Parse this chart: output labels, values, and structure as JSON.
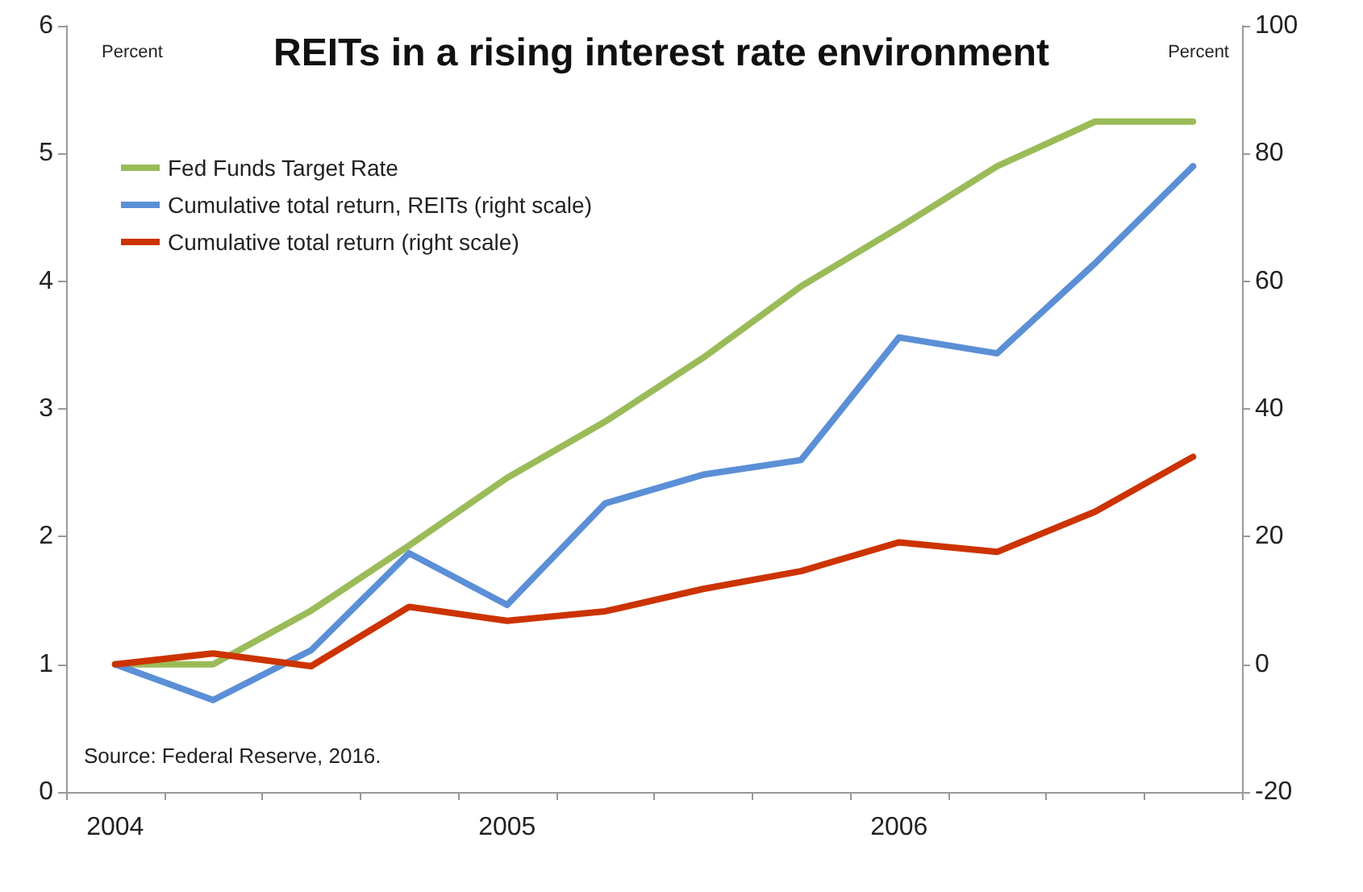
{
  "chart_data": {
    "type": "line",
    "title": "REITs in a rising interest rate environment",
    "ylabel": "Percent",
    "y2label": "Percent",
    "categories": [
      "2004",
      null,
      null,
      null,
      "2005",
      null,
      null,
      null,
      "2006",
      null,
      null,
      null
    ],
    "series": [
      {
        "name": "Fed Funds Target Rate",
        "color": "#9bbb59",
        "values": [
          1.0,
          1.0,
          1.42,
          1.93,
          2.46,
          2.9,
          3.4,
          3.96,
          4.42,
          4.9,
          5.25,
          5.25
        ]
      },
      {
        "name": "Cumulative total return, REITs (right scale)",
        "color": "#5b8fd6",
        "axis": "y2",
        "values": [
          0,
          -5.6,
          2.2,
          17.4,
          9.3,
          25.2,
          29.7,
          32,
          51.2,
          48.7,
          62.8,
          78
        ]
      },
      {
        "name": "Cumulative total return (right scale)",
        "color": "#cc3300",
        "axis": "y2",
        "values": [
          0,
          1.7,
          -0.3,
          9.0,
          6.8,
          8.3,
          11.8,
          14.6,
          19.1,
          17.6,
          23.9,
          32.5
        ]
      }
    ],
    "ylim": [
      0,
      6
    ],
    "yticks": [
      0,
      1,
      2,
      3,
      4,
      5,
      6
    ],
    "y2lim": [
      -20,
      100
    ],
    "y2ticks": [
      -20,
      0,
      20,
      40,
      60,
      80,
      100
    ],
    "grid": false,
    "legend": "top left",
    "marker": "none",
    "line_style": "solid",
    "annotations": [
      "Source: Federal Reserve, 2016."
    ]
  }
}
